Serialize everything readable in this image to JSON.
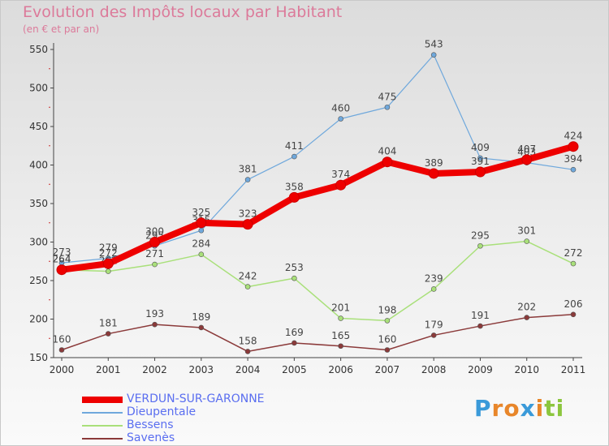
{
  "header": {
    "title": "Evolution des Impôts locaux par Habitant",
    "subtitle": "(en € et par an)"
  },
  "chart_data": {
    "type": "line",
    "x": [
      "2000",
      "2001",
      "2002",
      "2003",
      "2004",
      "2005",
      "2006",
      "2007",
      "2008",
      "2009",
      "2010",
      "2011"
    ],
    "ylim": [
      150,
      550
    ],
    "yticks": [
      150,
      200,
      250,
      300,
      350,
      400,
      450,
      500,
      550
    ],
    "grid": false,
    "legend_position": "bottom-left",
    "series": [
      {
        "name": "Dieupentale",
        "color": "#6fa8dc",
        "width": 1.2,
        "values": [
          273,
          279,
          295,
          315,
          381,
          411,
          460,
          475,
          543,
          409,
          403,
          394
        ]
      },
      {
        "name": "Bessens",
        "color": "#a9e07a",
        "width": 1.5,
        "values": [
          264,
          262,
          271,
          284,
          242,
          253,
          201,
          198,
          239,
          295,
          301,
          272
        ]
      },
      {
        "name": "Savenès",
        "color": "#8b3a3a",
        "width": 1.5,
        "values": [
          160,
          181,
          193,
          189,
          158,
          169,
          165,
          160,
          179,
          191,
          202,
          206
        ]
      },
      {
        "name": "VERDUN-SUR-GARONNE",
        "color": "#ee0000",
        "width": 8,
        "values": [
          264,
          272,
          300,
          325,
          323,
          358,
          374,
          404,
          389,
          391,
          407,
          424
        ]
      }
    ]
  },
  "legend": {
    "items": [
      {
        "label": "VERDUN-SUR-GARONNE",
        "color": "#ee0000",
        "thick": true
      },
      {
        "label": "Dieupentale",
        "color": "#6fa8dc",
        "thick": false
      },
      {
        "label": "Bessens",
        "color": "#a9e07a",
        "thick": false
      },
      {
        "label": "Savenès",
        "color": "#8b3a3a",
        "thick": false
      }
    ]
  },
  "brand": {
    "letters": [
      "P",
      "r",
      "o",
      "x",
      "i",
      "t",
      "i"
    ],
    "colors": [
      "#3a9ad9",
      "#e8862a",
      "#e8862a",
      "#3a9ad9",
      "#e8862a",
      "#8cc63e",
      "#8cc63e"
    ]
  }
}
